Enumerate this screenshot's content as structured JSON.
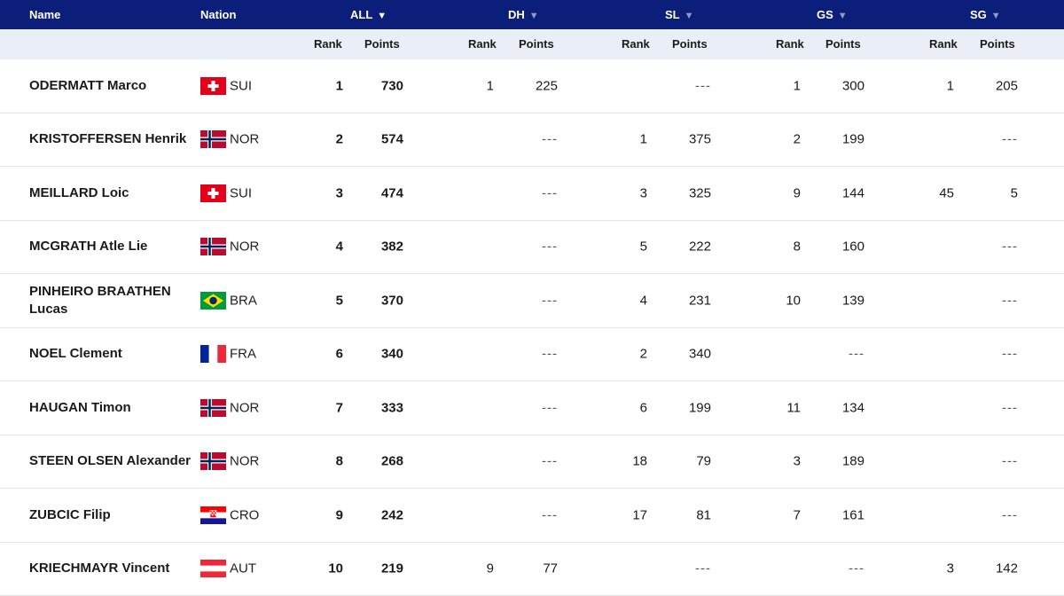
{
  "header": {
    "name": "Name",
    "nation": "Nation",
    "groups": [
      {
        "key": "all",
        "label": "ALL"
      },
      {
        "key": "dh",
        "label": "DH"
      },
      {
        "key": "sl",
        "label": "SL"
      },
      {
        "key": "gs",
        "label": "GS"
      },
      {
        "key": "sg",
        "label": "SG"
      }
    ],
    "caret": "▼",
    "rank_label": "Rank",
    "points_label": "Points"
  },
  "colors": {
    "header_bg": "#0b1f7a",
    "subheader_bg": "#e9eef7"
  },
  "rows": [
    {
      "name": "ODERMATT Marco",
      "flag": "sui",
      "nation": "SUI",
      "all_rank": "1",
      "all_points": "730",
      "dh_rank": "1",
      "dh_points": "225",
      "sl_rank": "",
      "sl_points": "---",
      "gs_rank": "1",
      "gs_points": "300",
      "sg_rank": "1",
      "sg_points": "205"
    },
    {
      "name": "KRISTOFFERSEN Henrik",
      "flag": "nor",
      "nation": "NOR",
      "all_rank": "2",
      "all_points": "574",
      "dh_rank": "",
      "dh_points": "---",
      "sl_rank": "1",
      "sl_points": "375",
      "gs_rank": "2",
      "gs_points": "199",
      "sg_rank": "",
      "sg_points": "---"
    },
    {
      "name": "MEILLARD Loic",
      "flag": "sui",
      "nation": "SUI",
      "all_rank": "3",
      "all_points": "474",
      "dh_rank": "",
      "dh_points": "---",
      "sl_rank": "3",
      "sl_points": "325",
      "gs_rank": "9",
      "gs_points": "144",
      "sg_rank": "45",
      "sg_points": "5"
    },
    {
      "name": "MCGRATH Atle Lie",
      "flag": "nor",
      "nation": "NOR",
      "all_rank": "4",
      "all_points": "382",
      "dh_rank": "",
      "dh_points": "---",
      "sl_rank": "5",
      "sl_points": "222",
      "gs_rank": "8",
      "gs_points": "160",
      "sg_rank": "",
      "sg_points": "---"
    },
    {
      "name": "PINHEIRO BRAATHEN Lucas",
      "flag": "bra",
      "nation": "BRA",
      "all_rank": "5",
      "all_points": "370",
      "dh_rank": "",
      "dh_points": "---",
      "sl_rank": "4",
      "sl_points": "231",
      "gs_rank": "10",
      "gs_points": "139",
      "sg_rank": "",
      "sg_points": "---"
    },
    {
      "name": "NOEL Clement",
      "flag": "fra",
      "nation": "FRA",
      "all_rank": "6",
      "all_points": "340",
      "dh_rank": "",
      "dh_points": "---",
      "sl_rank": "2",
      "sl_points": "340",
      "gs_rank": "",
      "gs_points": "---",
      "sg_rank": "",
      "sg_points": "---"
    },
    {
      "name": "HAUGAN Timon",
      "flag": "nor",
      "nation": "NOR",
      "all_rank": "7",
      "all_points": "333",
      "dh_rank": "",
      "dh_points": "---",
      "sl_rank": "6",
      "sl_points": "199",
      "gs_rank": "11",
      "gs_points": "134",
      "sg_rank": "",
      "sg_points": "---"
    },
    {
      "name": "STEEN OLSEN Alexander",
      "flag": "nor",
      "nation": "NOR",
      "all_rank": "8",
      "all_points": "268",
      "dh_rank": "",
      "dh_points": "---",
      "sl_rank": "18",
      "sl_points": "79",
      "gs_rank": "3",
      "gs_points": "189",
      "sg_rank": "",
      "sg_points": "---"
    },
    {
      "name": "ZUBCIC Filip",
      "flag": "cro",
      "nation": "CRO",
      "all_rank": "9",
      "all_points": "242",
      "dh_rank": "",
      "dh_points": "---",
      "sl_rank": "17",
      "sl_points": "81",
      "gs_rank": "7",
      "gs_points": "161",
      "sg_rank": "",
      "sg_points": "---"
    },
    {
      "name": "KRIECHMAYR Vincent",
      "flag": "aut",
      "nation": "AUT",
      "all_rank": "10",
      "all_points": "219",
      "dh_rank": "9",
      "dh_points": "77",
      "sl_rank": "",
      "sl_points": "---",
      "gs_rank": "",
      "gs_points": "---",
      "sg_rank": "3",
      "sg_points": "142"
    }
  ]
}
